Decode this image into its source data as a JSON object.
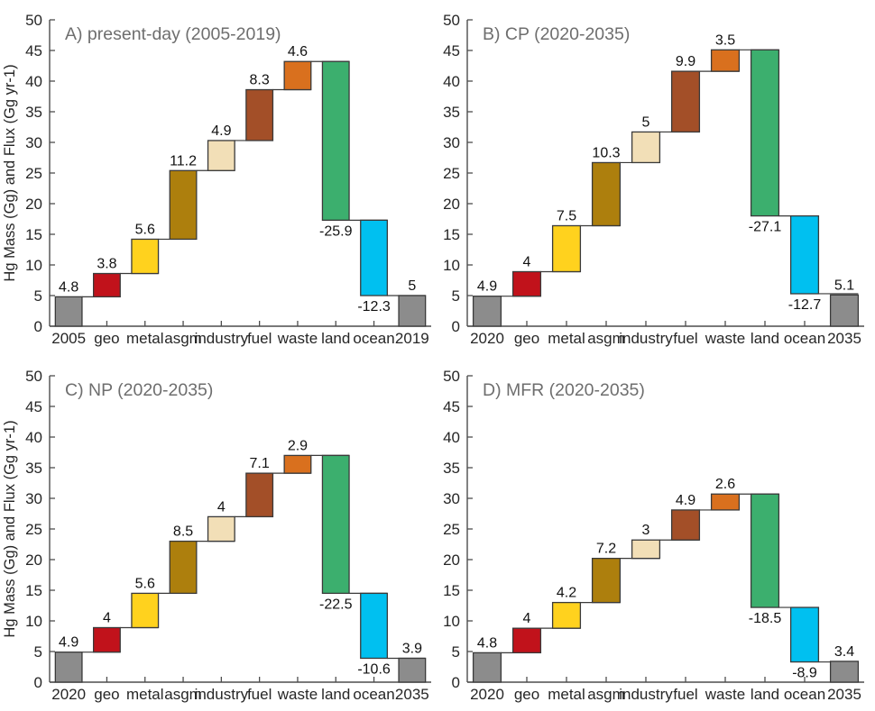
{
  "figure": {
    "background": "#FFFFFF",
    "axis_color": "#4D4D4D",
    "tick_label_color": "#262626",
    "value_label_color": "#111111",
    "title_color": "#6E6E6E",
    "bar_edge_color": "#3A3A3A",
    "palette": {
      "total": "#8C8C8C",
      "geo": "#C1121B",
      "metal": "#FFD21E",
      "asgm": "#AD7F0D",
      "industry": "#F2DFB7",
      "fuel": "#A34F28",
      "waste": "#D9701E",
      "land": "#3CAF6E",
      "ocean": "#00C0F0"
    }
  },
  "chart_data": [
    {
      "type": "bar",
      "subtype": "waterfall",
      "title": "A) present-day (2005-2019)",
      "ylabel": "Hg Mass (Gg) and Flux (Gg yr-1)",
      "categories": [
        "2005",
        "geo",
        "metal",
        "asgm",
        "industry",
        "fuel",
        "waste",
        "land",
        "ocean",
        "2019"
      ],
      "values": [
        4.8,
        3.8,
        5.6,
        11.2,
        4.9,
        8.3,
        4.6,
        -25.9,
        -12.3,
        5
      ],
      "bar_kinds": [
        "absolute",
        "delta",
        "delta",
        "delta",
        "delta",
        "delta",
        "delta",
        "delta",
        "delta",
        "absolute"
      ],
      "ylim": [
        0,
        50
      ],
      "yticks": [
        0,
        5,
        10,
        15,
        20,
        25,
        30,
        35,
        40,
        45,
        50
      ],
      "grid": false,
      "legend": null
    },
    {
      "type": "bar",
      "subtype": "waterfall",
      "title": "B) CP (2020-2035)",
      "ylabel": null,
      "categories": [
        "2020",
        "geo",
        "metal",
        "asgm",
        "industry",
        "fuel",
        "waste",
        "land",
        "ocean",
        "2035"
      ],
      "values": [
        4.9,
        4,
        7.5,
        10.3,
        5,
        9.9,
        3.5,
        -27.1,
        -12.7,
        5.1
      ],
      "bar_kinds": [
        "absolute",
        "delta",
        "delta",
        "delta",
        "delta",
        "delta",
        "delta",
        "delta",
        "delta",
        "absolute"
      ],
      "ylim": [
        0,
        50
      ],
      "yticks": [
        0,
        5,
        10,
        15,
        20,
        25,
        30,
        35,
        40,
        45,
        50
      ],
      "grid": false,
      "legend": null
    },
    {
      "type": "bar",
      "subtype": "waterfall",
      "title": "C) NP (2020-2035)",
      "ylabel": "Hg Mass (Gg) and Flux (Gg yr-1)",
      "categories": [
        "2020",
        "geo",
        "metal",
        "asgm",
        "industry",
        "fuel",
        "waste",
        "land",
        "ocean",
        "2035"
      ],
      "values": [
        4.9,
        4,
        5.6,
        8.5,
        4,
        7.1,
        2.9,
        -22.5,
        -10.6,
        3.9
      ],
      "bar_kinds": [
        "absolute",
        "delta",
        "delta",
        "delta",
        "delta",
        "delta",
        "delta",
        "delta",
        "delta",
        "absolute"
      ],
      "ylim": [
        0,
        50
      ],
      "yticks": [
        0,
        5,
        10,
        15,
        20,
        25,
        30,
        35,
        40,
        45,
        50
      ],
      "grid": false,
      "legend": null
    },
    {
      "type": "bar",
      "subtype": "waterfall",
      "title": "D) MFR (2020-2035)",
      "ylabel": null,
      "categories": [
        "2020",
        "geo",
        "metal",
        "asgm",
        "industry",
        "fuel",
        "waste",
        "land",
        "ocean",
        "2035"
      ],
      "values": [
        4.8,
        4,
        4.2,
        7.2,
        3,
        4.9,
        2.6,
        -18.5,
        -8.9,
        3.4
      ],
      "bar_kinds": [
        "absolute",
        "delta",
        "delta",
        "delta",
        "delta",
        "delta",
        "delta",
        "delta",
        "delta",
        "absolute"
      ],
      "ylim": [
        0,
        50
      ],
      "yticks": [
        0,
        5,
        10,
        15,
        20,
        25,
        30,
        35,
        40,
        45,
        50
      ],
      "grid": false,
      "legend": null
    }
  ]
}
